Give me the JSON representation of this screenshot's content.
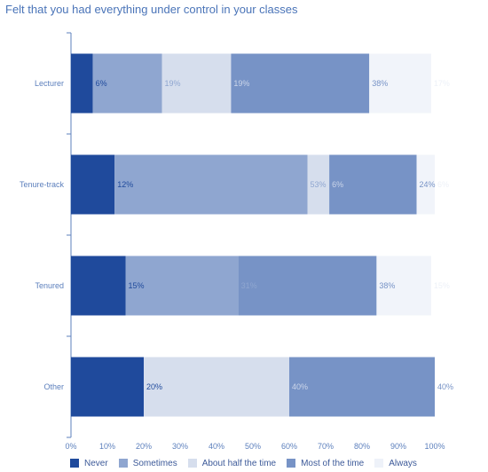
{
  "chart_data": {
    "type": "bar",
    "orientation": "horizontal",
    "stacked": true,
    "title": "Felt that you had everything under control in your classes",
    "categories": [
      "Lecturer",
      "Tenure-track",
      "Tenured",
      "Other"
    ],
    "series": [
      {
        "name": "Never",
        "color": "#1f4a9c",
        "label_color": "#1f4a9c",
        "values": [
          6,
          12,
          15,
          20
        ],
        "labels": [
          "6%",
          "12%",
          "15%",
          "20%"
        ]
      },
      {
        "name": "Sometimes",
        "color": "#8fa6d0",
        "label_color": "#8fa6d0",
        "values": [
          19,
          53,
          31,
          0
        ],
        "labels": [
          "19%",
          "53%",
          "31%",
          ""
        ]
      },
      {
        "name": "About half the time",
        "color": "#d6deed",
        "label_color": "#ccd6ea",
        "values": [
          19,
          6,
          0,
          40
        ],
        "labels": [
          "19%",
          "6%",
          "",
          "40%"
        ]
      },
      {
        "name": "Most of the time",
        "color": "#7793c6",
        "label_color": "#7793c6",
        "values": [
          38,
          24,
          38,
          40
        ],
        "labels": [
          "38%",
          "24%",
          "38%",
          "40%"
        ]
      },
      {
        "name": "Always",
        "color": "#f1f4fa",
        "label_color": "#edf1f8",
        "values": [
          17,
          6,
          15,
          0
        ],
        "labels": [
          "17%",
          "6%",
          "15%",
          ""
        ]
      }
    ],
    "x_ticks": [
      "0%",
      "10%",
      "20%",
      "30%",
      "40%",
      "50%",
      "60%",
      "70%",
      "80%",
      "90%",
      "100%"
    ],
    "xlim": [
      0,
      100
    ],
    "grid": false,
    "legend_position": "bottom"
  }
}
